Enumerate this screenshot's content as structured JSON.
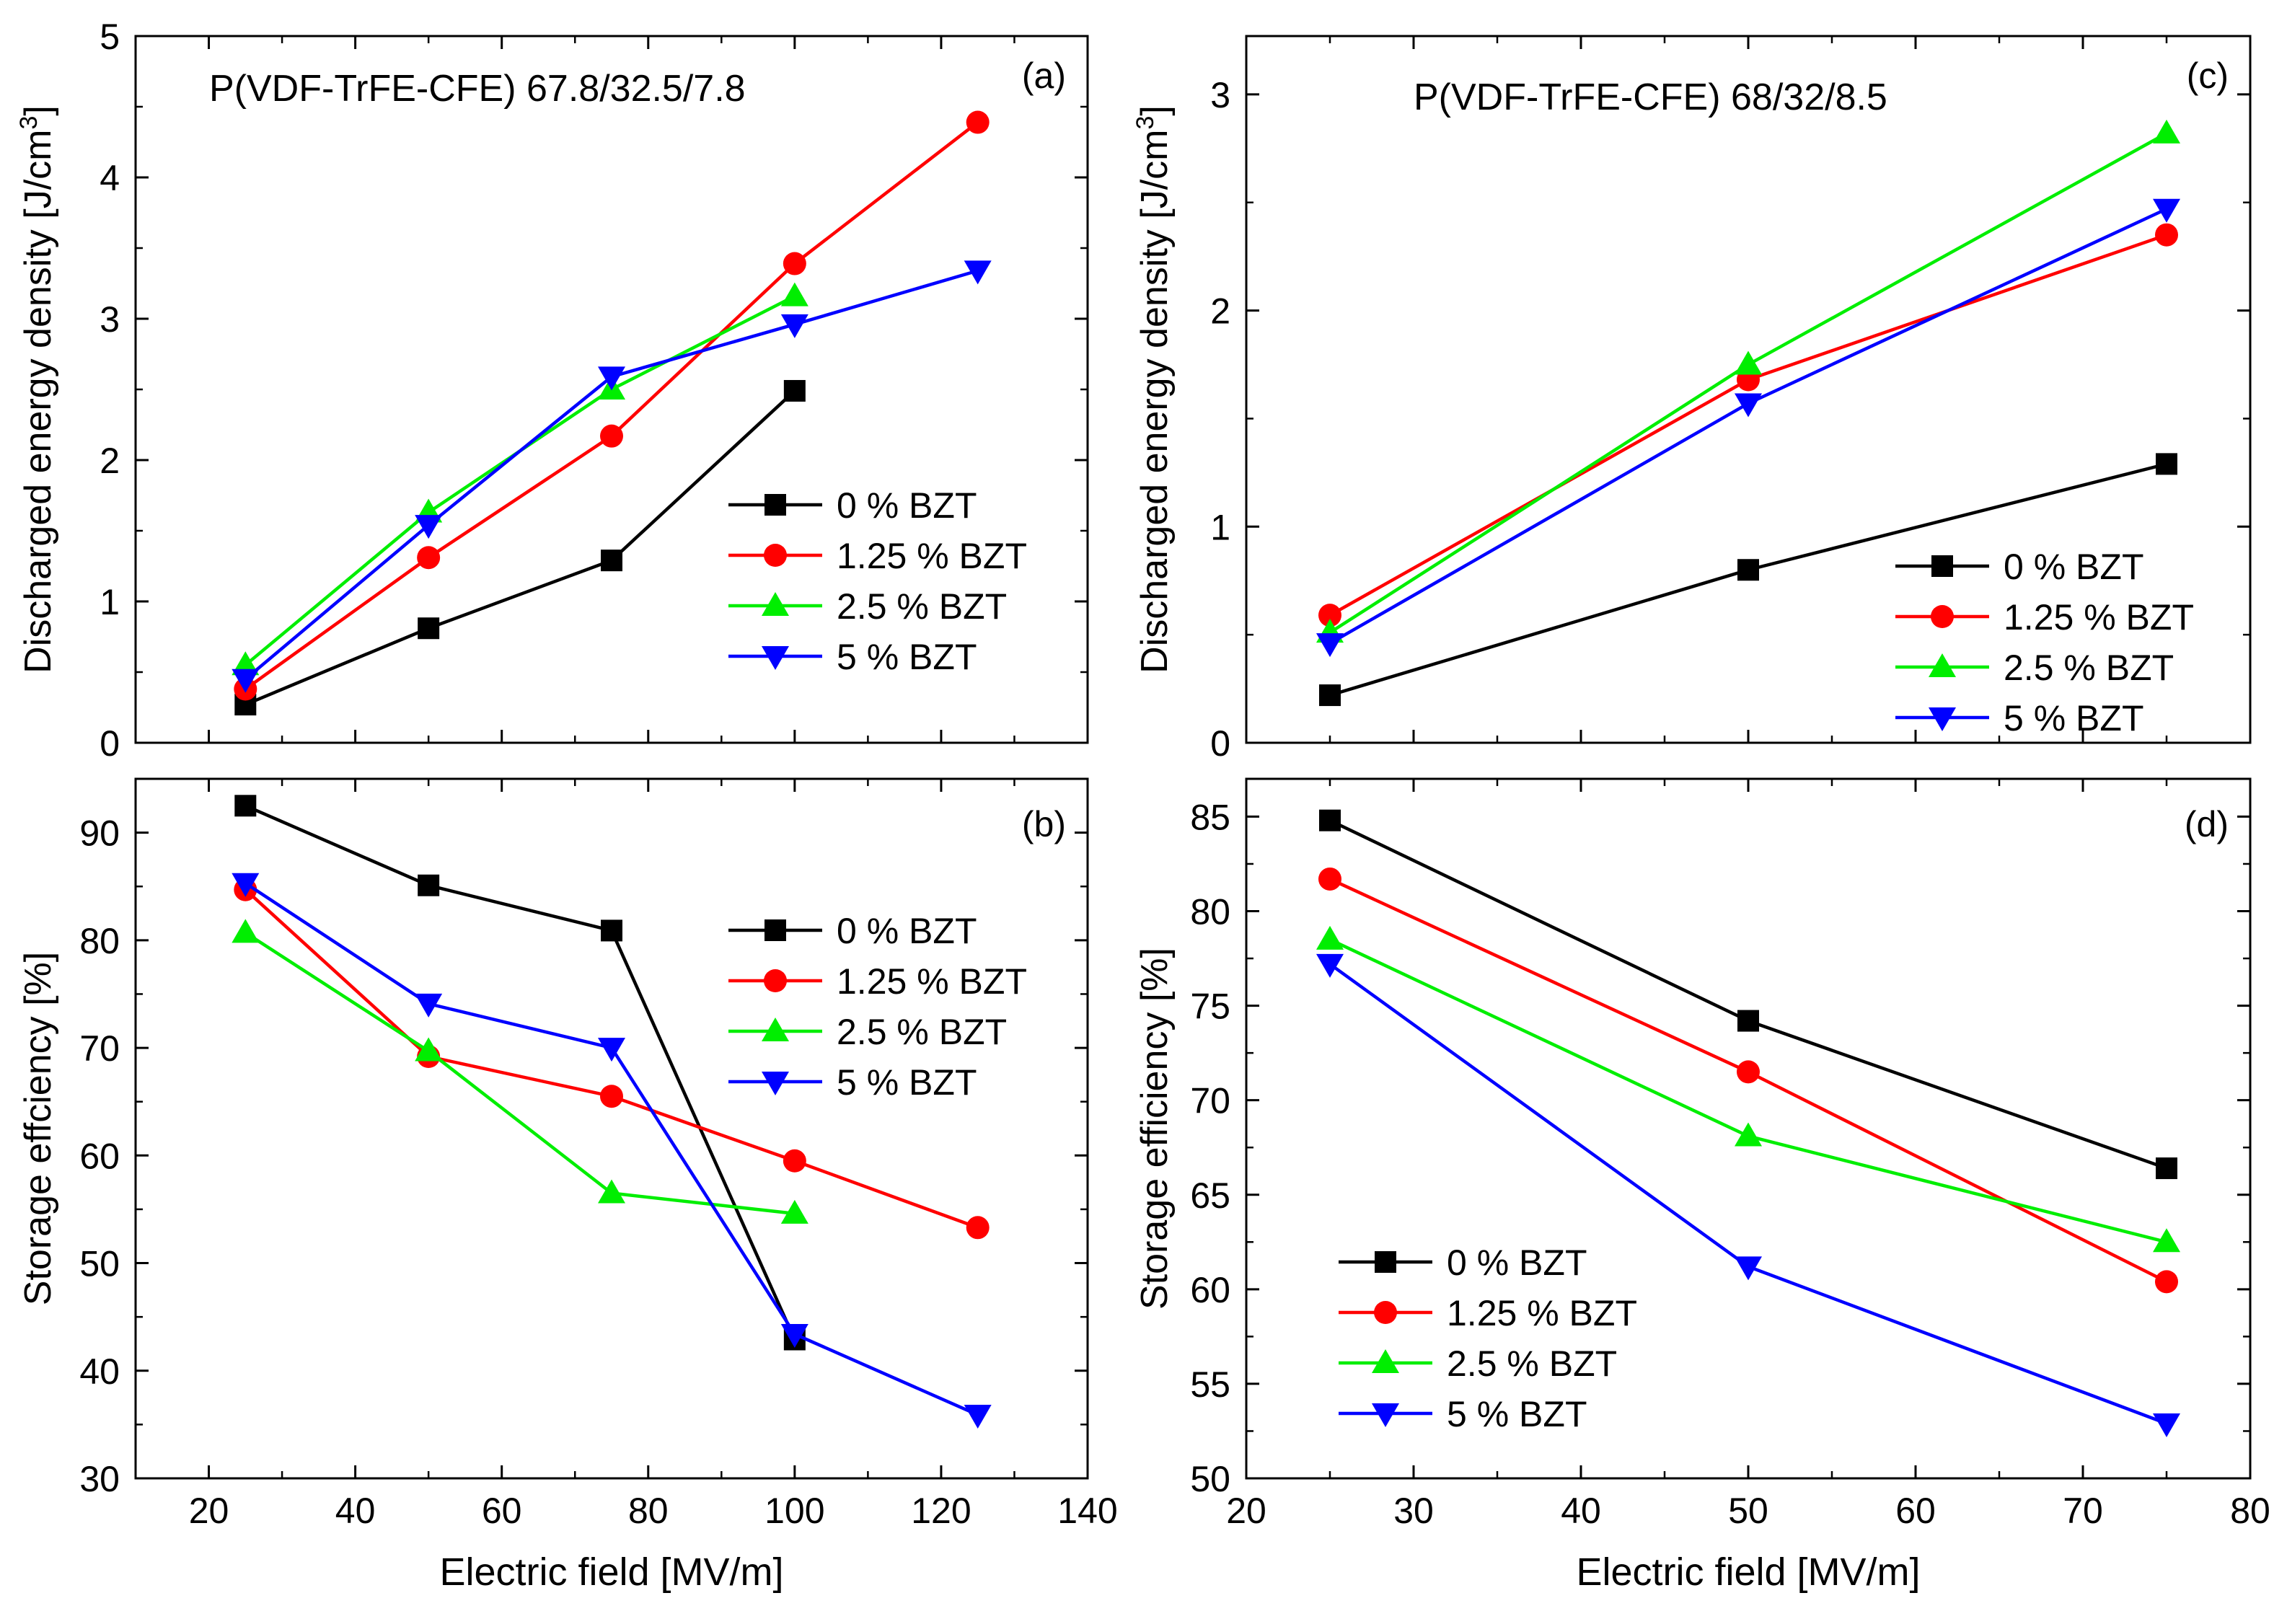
{
  "colors": {
    "s0": "#000000",
    "s1": "#ff0000",
    "s2": "#00ee00",
    "s3": "#0000ff"
  },
  "chart_data": [
    {
      "id": "a",
      "type": "line",
      "panel_label": "(a)",
      "annotation": "P(VDF-TrFE-CFE) 67.8/32.5/7.8",
      "ylabel_main": "Discharged energy density [J/cm",
      "ylabel_sup": "3",
      "ylabel_end": "]",
      "xlabel": "",
      "xlim": [
        10,
        140
      ],
      "ylim": [
        0,
        5
      ],
      "xticks": [
        20,
        40,
        60,
        80,
        100,
        120,
        140
      ],
      "yticks": [
        0,
        1,
        2,
        3,
        4,
        5
      ],
      "show_xticklabels": false,
      "legend": "center-right",
      "series": [
        {
          "name": "0 % BZT",
          "marker": "square",
          "x": [
            25,
            50,
            75,
            100
          ],
          "y": [
            0.27,
            0.81,
            1.29,
            2.49
          ]
        },
        {
          "name": "1.25 % BZT",
          "marker": "circle",
          "x": [
            25,
            50,
            75,
            100,
            125
          ],
          "y": [
            0.38,
            1.31,
            2.17,
            3.39,
            4.39
          ]
        },
        {
          "name": "2.5 % BZT",
          "marker": "triangle-up",
          "x": [
            25,
            50,
            75,
            100
          ],
          "y": [
            0.55,
            1.63,
            2.5,
            3.16
          ]
        },
        {
          "name": "5 % BZT",
          "marker": "triangle-down",
          "x": [
            25,
            50,
            75,
            100,
            125
          ],
          "y": [
            0.45,
            1.54,
            2.59,
            2.96,
            3.34
          ]
        }
      ]
    },
    {
      "id": "b",
      "type": "line",
      "panel_label": "(b)",
      "ylabel_main": "Storage effciency [%]",
      "xlabel": "Electric field [MV/m]",
      "xlim": [
        10,
        140
      ],
      "ylim": [
        30,
        95
      ],
      "xticks": [
        20,
        40,
        60,
        80,
        100,
        120,
        140
      ],
      "yticks": [
        30,
        40,
        50,
        60,
        70,
        80,
        90
      ],
      "show_xticklabels": true,
      "legend": "center-right",
      "series": [
        {
          "name": "0 % BZT",
          "marker": "square",
          "x": [
            25,
            50,
            75,
            100
          ],
          "y": [
            92.5,
            85.1,
            80.9,
            42.9
          ]
        },
        {
          "name": "1.25 % BZT",
          "marker": "circle",
          "x": [
            25,
            50,
            75,
            100,
            125
          ],
          "y": [
            84.7,
            69.2,
            65.5,
            59.5,
            53.3
          ]
        },
        {
          "name": "2.5 % BZT",
          "marker": "triangle-up",
          "x": [
            25,
            50,
            75,
            100
          ],
          "y": [
            80.7,
            69.7,
            56.5,
            54.6
          ]
        },
        {
          "name": "5 % BZT",
          "marker": "triangle-down",
          "x": [
            25,
            50,
            75,
            100,
            125
          ],
          "y": [
            85.3,
            74.1,
            70.0,
            43.4,
            35.9
          ]
        }
      ]
    },
    {
      "id": "c",
      "type": "line",
      "panel_label": "(c)",
      "annotation": "P(VDF-TrFE-CFE) 68/32/8.5",
      "ylabel_main": "Discharged energy density [J/cm",
      "ylabel_sup": "3",
      "ylabel_end": "]",
      "xlabel": "",
      "xlim": [
        20,
        80
      ],
      "ylim": [
        0,
        3.27
      ],
      "xticks": [
        20,
        30,
        40,
        50,
        60,
        70,
        80
      ],
      "yticks": [
        0,
        1,
        2,
        3
      ],
      "show_xticklabels": false,
      "legend": "bottom-right",
      "series": [
        {
          "name": "0 % BZT",
          "marker": "square",
          "x": [
            25,
            50,
            75
          ],
          "y": [
            0.22,
            0.8,
            1.29
          ]
        },
        {
          "name": "1.25 % BZT",
          "marker": "circle",
          "x": [
            25,
            50,
            75
          ],
          "y": [
            0.59,
            1.68,
            2.35
          ]
        },
        {
          "name": "2.5 % BZT",
          "marker": "triangle-up",
          "x": [
            25,
            50,
            75
          ],
          "y": [
            0.51,
            1.75,
            2.82
          ]
        },
        {
          "name": "5 % BZT",
          "marker": "triangle-down",
          "x": [
            25,
            50,
            75
          ],
          "y": [
            0.46,
            1.57,
            2.47
          ]
        }
      ]
    },
    {
      "id": "d",
      "type": "line",
      "panel_label": "(d)",
      "ylabel_main": "Storage efficiency [%]",
      "xlabel": "Electric field [MV/m]",
      "xlim": [
        20,
        80
      ],
      "ylim": [
        50,
        87
      ],
      "xticks": [
        20,
        30,
        40,
        50,
        60,
        70,
        80
      ],
      "yticks": [
        50,
        55,
        60,
        65,
        70,
        75,
        80,
        85
      ],
      "show_xticklabels": true,
      "legend": "bottom-left",
      "series": [
        {
          "name": "0 % BZT",
          "marker": "square",
          "x": [
            25,
            50,
            75
          ],
          "y": [
            84.8,
            74.2,
            66.4
          ]
        },
        {
          "name": "1.25 % BZT",
          "marker": "circle",
          "x": [
            25,
            50,
            75
          ],
          "y": [
            81.7,
            71.5,
            60.4
          ]
        },
        {
          "name": "2.5 % BZT",
          "marker": "triangle-up",
          "x": [
            25,
            50,
            75
          ],
          "y": [
            78.5,
            68.1,
            62.5
          ]
        },
        {
          "name": "5 % BZT",
          "marker": "triangle-down",
          "x": [
            25,
            50,
            75
          ],
          "y": [
            77.2,
            61.2,
            52.9
          ]
        }
      ]
    }
  ]
}
